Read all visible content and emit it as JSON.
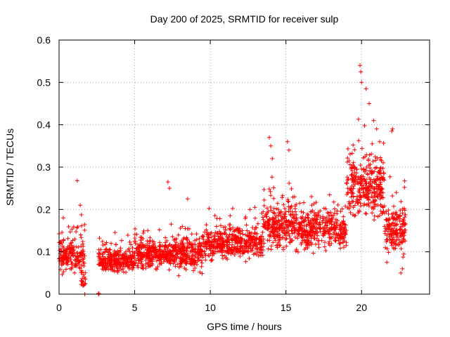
{
  "chart_data": {
    "type": "scatter",
    "title": "Day 200 of 2025, SRMTID for receiver sulp",
    "xlabel": "GPS time / hours",
    "ylabel": "SRMTID / TECUs",
    "xlim": [
      0,
      24.5
    ],
    "ylim": [
      0,
      0.6
    ],
    "x_ticks": [
      0,
      5,
      10,
      15,
      20
    ],
    "y_ticks": [
      0,
      0.1,
      0.2,
      0.3,
      0.4,
      0.5,
      0.6
    ],
    "x_tick_labels": [
      "0",
      "5",
      "10",
      "15",
      "20"
    ],
    "y_tick_labels": [
      "0",
      "0.1",
      "0.2",
      "0.3",
      "0.4",
      "0.5",
      "0.6"
    ],
    "grid": true,
    "marker": "+",
    "marker_color": "#ff0000",
    "segments": [
      {
        "x_start": 0.0,
        "x_end": 1.7,
        "base": 0.09,
        "spread": 0.045,
        "density": 110
      },
      {
        "x_start": 1.45,
        "x_end": 1.75,
        "base": 0.03,
        "spread": 0.02,
        "density": 60
      },
      {
        "x_start": 2.6,
        "x_end": 2.7,
        "base": 0.0,
        "spread": 0.003,
        "density": 40
      },
      {
        "x_start": 2.6,
        "x_end": 5.0,
        "base": 0.08,
        "spread": 0.03,
        "density": 120
      },
      {
        "x_start": 5.0,
        "x_end": 7.2,
        "base": 0.095,
        "spread": 0.035,
        "density": 120
      },
      {
        "x_start": 7.2,
        "x_end": 9.5,
        "base": 0.095,
        "spread": 0.04,
        "density": 120
      },
      {
        "x_start": 9.5,
        "x_end": 13.5,
        "base": 0.12,
        "spread": 0.04,
        "density": 110
      },
      {
        "x_start": 13.5,
        "x_end": 15.5,
        "base": 0.16,
        "spread": 0.06,
        "density": 120
      },
      {
        "x_start": 15.5,
        "x_end": 19.0,
        "base": 0.15,
        "spread": 0.05,
        "density": 110
      },
      {
        "x_start": 19.0,
        "x_end": 21.5,
        "base": 0.25,
        "spread": 0.08,
        "density": 130
      },
      {
        "x_start": 21.5,
        "x_end": 22.9,
        "base": 0.15,
        "spread": 0.06,
        "density": 120
      }
    ],
    "outliers": [
      [
        1.2,
        0.268
      ],
      [
        1.4,
        0.21
      ],
      [
        7.2,
        0.265
      ],
      [
        7.3,
        0.25
      ],
      [
        8.5,
        0.225
      ],
      [
        13.9,
        0.37
      ],
      [
        14.0,
        0.35
      ],
      [
        14.1,
        0.32
      ],
      [
        15.1,
        0.36
      ],
      [
        15.2,
        0.34
      ],
      [
        19.5,
        0.3
      ],
      [
        19.9,
        0.54
      ],
      [
        19.95,
        0.525
      ],
      [
        20.0,
        0.5
      ],
      [
        20.3,
        0.485
      ],
      [
        20.5,
        0.45
      ],
      [
        20.8,
        0.41
      ],
      [
        21.0,
        0.39
      ],
      [
        21.2,
        0.36
      ],
      [
        22.0,
        0.385
      ],
      [
        22.05,
        0.39
      ],
      [
        22.3,
        0.24
      ],
      [
        22.6,
        0.05
      ],
      [
        22.7,
        0.06
      ],
      [
        1.7,
        0.0
      ]
    ]
  }
}
